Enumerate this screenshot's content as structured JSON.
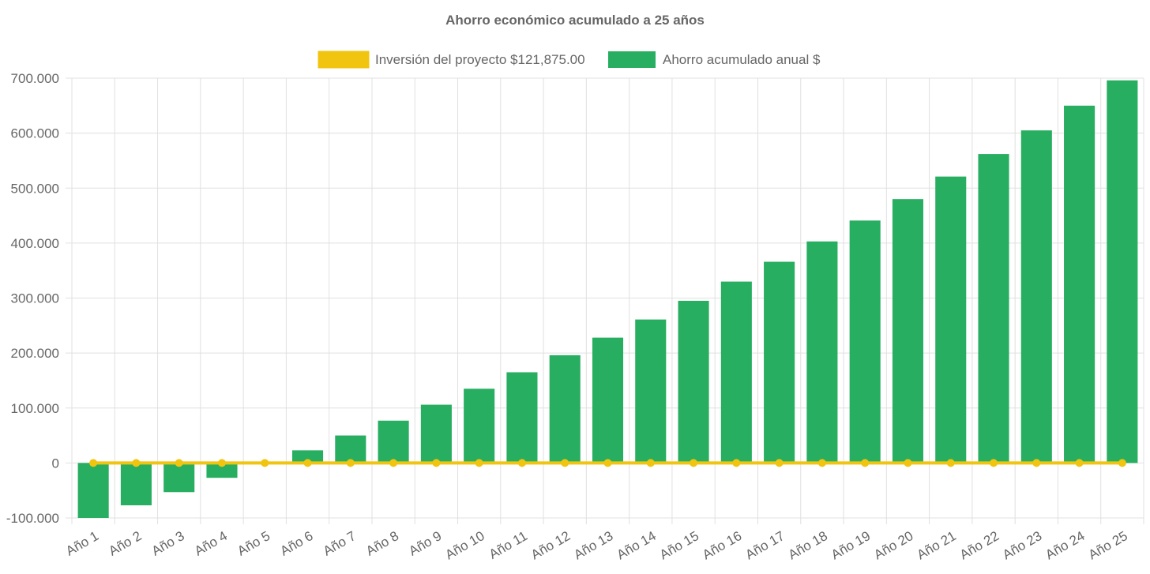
{
  "chart_data": {
    "type": "bar",
    "title": "Ahorro económico acumulado a 25 años",
    "categories": [
      "Año 1",
      "Año 2",
      "Año 3",
      "Año 4",
      "Año 5",
      "Año 6",
      "Año 7",
      "Año 8",
      "Año 9",
      "Año 10",
      "Año 11",
      "Año 12",
      "Año 13",
      "Año 14",
      "Año 15",
      "Año 16",
      "Año 17",
      "Año 18",
      "Año 19",
      "Año 20",
      "Año 21",
      "Año 22",
      "Año 23",
      "Año 24",
      "Año 25"
    ],
    "series": [
      {
        "name": "Inversión del proyecto $121,875.00",
        "type": "line",
        "color": "#f1c40f",
        "values": [
          0,
          0,
          0,
          0,
          0,
          0,
          0,
          0,
          0,
          0,
          0,
          0,
          0,
          0,
          0,
          0,
          0,
          0,
          0,
          0,
          0,
          0,
          0,
          0,
          0
        ]
      },
      {
        "name": "Ahorro acumulado anual $",
        "type": "bar",
        "color": "#27ae60",
        "values": [
          -100000,
          -77000,
          -53000,
          -27000,
          0,
          23000,
          50000,
          77000,
          106000,
          135000,
          165000,
          196000,
          228000,
          261000,
          295000,
          330000,
          366000,
          403000,
          441000,
          480000,
          521000,
          562000,
          605000,
          650000,
          696000
        ]
      }
    ],
    "ylim": [
      -100000,
      700000
    ],
    "yticks": [
      -100000,
      0,
      100000,
      200000,
      300000,
      400000,
      500000,
      600000,
      700000
    ],
    "ytick_labels": [
      "-100.000",
      "0",
      "100.000",
      "200.000",
      "300.000",
      "400.000",
      "500.000",
      "600.000",
      "700.000"
    ],
    "grid": true,
    "legend_position": "top"
  }
}
